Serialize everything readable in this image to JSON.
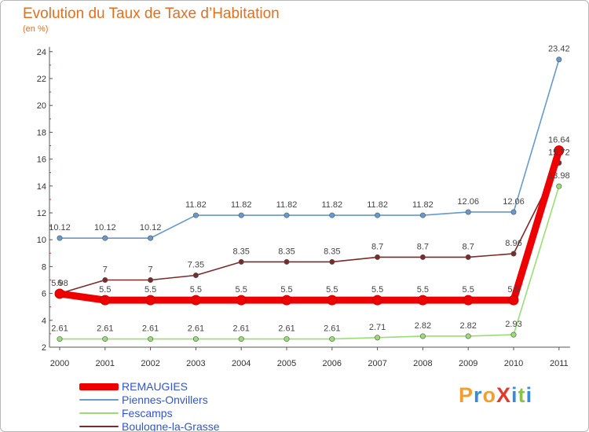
{
  "title": "Evolution du Taux de Taxe d’Habitation",
  "unit_label": "(en %)",
  "logo": {
    "text": "ProXiti",
    "letters": [
      {
        "ch": "P",
        "color": "#f0a030"
      },
      {
        "ch": "r",
        "color": "#3a8ad8"
      },
      {
        "ch": "o",
        "color": "#f0a030"
      },
      {
        "ch": "X",
        "color": "#e03a2a"
      },
      {
        "ch": "i",
        "color": "#3a8ad8"
      },
      {
        "ch": "t",
        "color": "#8cc04a"
      },
      {
        "ch": "i",
        "color": "#3a8ad8"
      }
    ]
  },
  "chart_data": {
    "type": "line",
    "x": [
      "2000",
      "2001",
      "2002",
      "2003",
      "2004",
      "2005",
      "2006",
      "2007",
      "2008",
      "2009",
      "2010",
      "2011"
    ],
    "ylim": [
      2,
      24
    ],
    "yticks": [
      2,
      4,
      6,
      8,
      10,
      12,
      14,
      16,
      18,
      20,
      22,
      24
    ],
    "grid": false,
    "legend_position": "bottom-left",
    "series": [
      {
        "name": "REMAUGIES",
        "color": "#ee0000",
        "values": [
          5.98,
          5.5,
          5.5,
          5.5,
          5.5,
          5.5,
          5.5,
          5.5,
          5.5,
          5.5,
          5.5,
          16.64
        ],
        "labels": [
          "5.98",
          "5.5",
          "5.5",
          "5.5",
          "5.5",
          "5.5",
          "5.5",
          "5.5",
          "5.5",
          "5.5",
          "5.5",
          "16.64"
        ]
      },
      {
        "name": "Piennes-Onvillers",
        "color": "#6699cc",
        "values": [
          10.12,
          10.12,
          10.12,
          11.82,
          11.82,
          11.82,
          11.82,
          11.82,
          11.82,
          12.06,
          12.06,
          23.42
        ],
        "labels": [
          "10.12",
          "10.12",
          "10.12",
          "11.82",
          "11.82",
          "11.82",
          "11.82",
          "11.82",
          "11.82",
          "12.06",
          "12.06",
          "23.42"
        ]
      },
      {
        "name": "Fescamps",
        "color": "#99dd77",
        "values": [
          2.61,
          2.61,
          2.61,
          2.61,
          2.61,
          2.61,
          2.61,
          2.71,
          2.82,
          2.82,
          2.93,
          13.98
        ],
        "labels": [
          "2.61",
          "2.61",
          "2.61",
          "2.61",
          "2.61",
          "2.61",
          "2.61",
          "2.71",
          "2.82",
          "2.82",
          "2.93",
          "13.98"
        ]
      },
      {
        "name": "Boulogne-la-Grasse",
        "color": "#7a2a2a",
        "values": [
          6,
          7,
          7,
          7.35,
          8.35,
          8.35,
          8.35,
          8.7,
          8.7,
          8.7,
          8.96,
          15.72
        ],
        "labels": [
          "6",
          "7",
          "7",
          "7.35",
          "8.35",
          "8.35",
          "8.35",
          "8.7",
          "8.7",
          "8.7",
          "8.96",
          "15.72"
        ]
      }
    ]
  }
}
